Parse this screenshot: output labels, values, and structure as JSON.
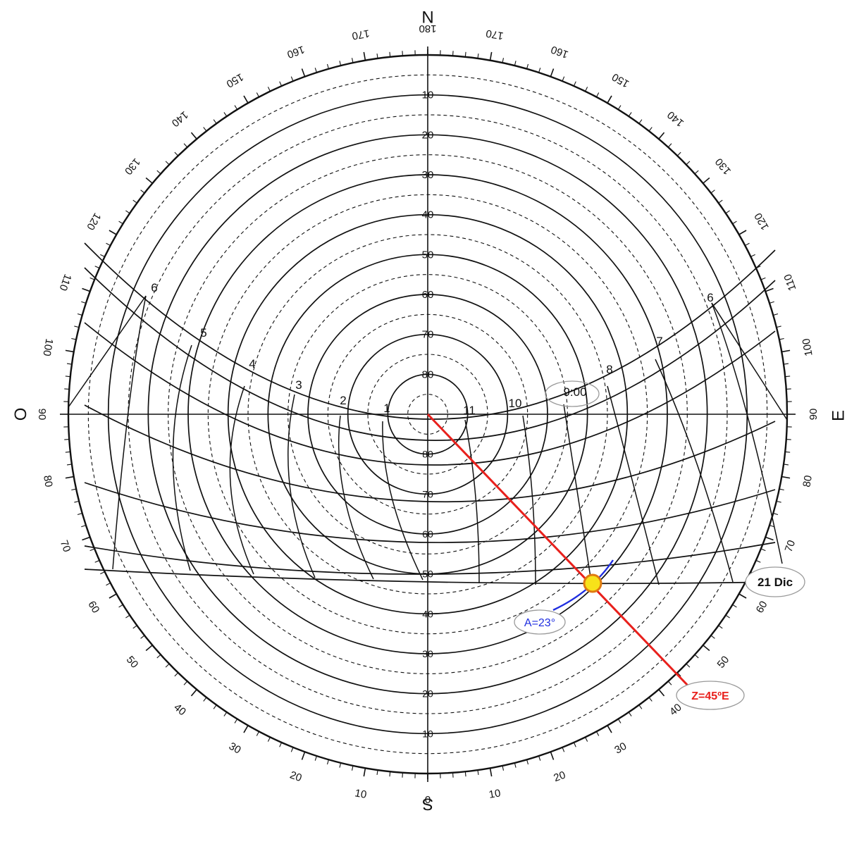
{
  "diagram": {
    "cardinals": {
      "north": "N",
      "south": "S",
      "east": "E",
      "west": "O"
    },
    "azimuth_ticks": [
      {
        "az": 180,
        "label": "180"
      },
      {
        "az": 170,
        "label": "170"
      },
      {
        "az": -170,
        "label": "170"
      },
      {
        "az": 160,
        "label": "160"
      },
      {
        "az": -160,
        "label": "160"
      },
      {
        "az": 150,
        "label": "150"
      },
      {
        "az": -150,
        "label": "150"
      },
      {
        "az": 140,
        "label": "140"
      },
      {
        "az": -140,
        "label": "140"
      },
      {
        "az": 130,
        "label": "130"
      },
      {
        "az": -130,
        "label": "130"
      },
      {
        "az": 120,
        "label": "120"
      },
      {
        "az": -120,
        "label": "120"
      },
      {
        "az": 110,
        "label": "110"
      },
      {
        "az": -110,
        "label": "110"
      },
      {
        "az": 100,
        "label": "100"
      },
      {
        "az": -100,
        "label": "100"
      },
      {
        "az": 90,
        "label": "90"
      },
      {
        "az": -90,
        "label": "90"
      },
      {
        "az": 80,
        "label": "80"
      },
      {
        "az": -80,
        "label": "80"
      },
      {
        "az": 70,
        "label": "70"
      },
      {
        "az": -70,
        "label": "70"
      },
      {
        "az": 60,
        "label": "60"
      },
      {
        "az": -60,
        "label": "60"
      },
      {
        "az": 50,
        "label": "50"
      },
      {
        "az": -50,
        "label": "50"
      },
      {
        "az": 40,
        "label": "40"
      },
      {
        "az": -40,
        "label": "40"
      },
      {
        "az": 30,
        "label": "30"
      },
      {
        "az": -30,
        "label": "30"
      },
      {
        "az": 20,
        "label": "20"
      },
      {
        "az": -20,
        "label": "20"
      },
      {
        "az": 10,
        "label": "10"
      },
      {
        "az": -10,
        "label": "10"
      },
      {
        "az": 0,
        "label": "0"
      }
    ],
    "altitude_rings": [
      {
        "alt": 10,
        "label": "10"
      },
      {
        "alt": 20,
        "label": "20"
      },
      {
        "alt": 30,
        "label": "30"
      },
      {
        "alt": 40,
        "label": "40"
      },
      {
        "alt": 50,
        "label": "50"
      },
      {
        "alt": 60,
        "label": "60"
      },
      {
        "alt": 70,
        "label": "70"
      },
      {
        "alt": 80,
        "label": "80"
      }
    ],
    "hour_marks": [
      {
        "label": "6",
        "side": "west"
      },
      {
        "label": "5",
        "side": "west"
      },
      {
        "label": "4",
        "side": "west"
      },
      {
        "label": "3",
        "side": "west"
      },
      {
        "label": "2",
        "side": "west"
      },
      {
        "label": "1",
        "side": "west"
      },
      {
        "label": "11",
        "side": "east"
      },
      {
        "label": "10",
        "side": "east"
      },
      {
        "label": "9:00",
        "side": "east"
      },
      {
        "label": "8",
        "side": "east"
      },
      {
        "label": "7",
        "side": "east"
      },
      {
        "label": "6",
        "side": "east"
      }
    ],
    "annotations": {
      "date_label": "21 Dic",
      "altitude_label": "A=23°",
      "azimuth_label": "Z=45ºE",
      "altitude_value": 23,
      "azimuth_value": 45
    },
    "colors": {
      "line": "#111111",
      "azimuth_marker": "#e8201c",
      "altitude_marker": "#1f2ee0",
      "sun_fill": "#f7e21a",
      "sun_stroke": "#e07a10",
      "bubble_stroke": "#9a9a9a"
    }
  }
}
